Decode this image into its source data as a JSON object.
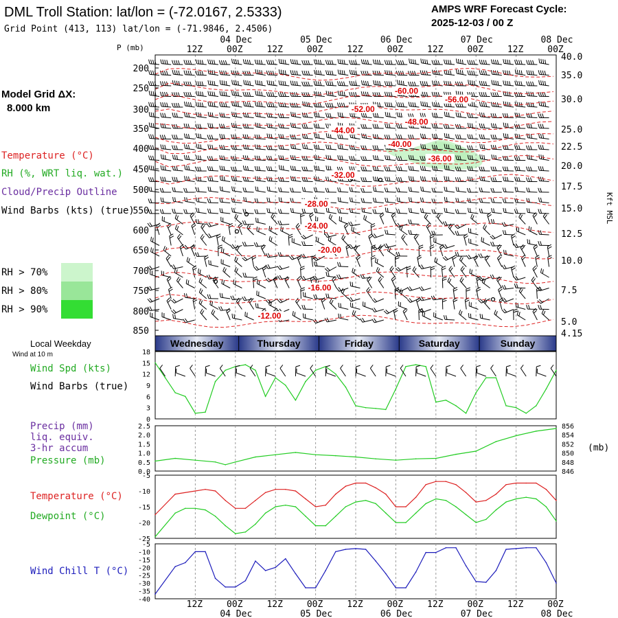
{
  "header": {
    "title": "DML Troll Station:  lat/lon = (-72.0167, 2.5333)",
    "grid_point": "Grid Point (413, 113) lat/lon = (-71.9846, 2.4506)",
    "cycle_label": "AMPS WRF Forecast Cycle:",
    "cycle_value": "2025-12-03 / 00  Z"
  },
  "time_axis": {
    "hour_labels": [
      "12Z",
      "00Z",
      "12Z",
      "00Z",
      "12Z",
      "00Z",
      "12Z",
      "00Z",
      "12Z",
      "00Z"
    ],
    "date_labels": [
      "04 Dec",
      "05 Dec",
      "06 Dec",
      "07 Dec",
      "08 Dec"
    ]
  },
  "left_panel": {
    "model_grid_label": "Model Grid ΔX:",
    "model_grid_value": "8.000 km",
    "legend": [
      {
        "text": "Temperature (°C)",
        "color": "#dd2222"
      },
      {
        "text": "RH (%, WRT liq. wat.)",
        "color": "#22aa22"
      },
      {
        "text": "Cloud/Precip Outline",
        "color": "#6a2ea0"
      },
      {
        "text": "Wind Barbs (kts) (true)",
        "color": "#000000"
      }
    ],
    "rh_legend": [
      {
        "text": "RH > 70%",
        "color": "#ccf5cc"
      },
      {
        "text": "RH > 80%",
        "color": "#99e699"
      },
      {
        "text": "RH > 90%",
        "color": "#33dd33"
      }
    ]
  },
  "chart_data": [
    {
      "type": "heatmap",
      "title": "",
      "ylabel": "P (mb)",
      "y_right_label": "Kft MSL",
      "pressure_ticks": [
        "200",
        "250",
        "300",
        "350",
        "400",
        "450",
        "500",
        "550",
        "600",
        "650",
        "700",
        "750",
        "800",
        "850"
      ],
      "height_ticks": [
        "40.0",
        "35.0",
        "30.0",
        "25.0",
        "22.5",
        "20.0",
        "17.5",
        "15.0",
        "12.5",
        "10.0",
        "7.5",
        "5.0",
        "4.15"
      ],
      "temperature_isotherms": [
        {
          "value": -60,
          "label": "-60.00",
          "pressure": 262,
          "time_h": 75
        },
        {
          "value": -56,
          "label": "-56.00",
          "pressure": 282,
          "time_h": 90
        },
        {
          "value": -52,
          "label": "-52.00",
          "pressure": 305,
          "time_h": 62
        },
        {
          "value": -48,
          "label": "-48.00",
          "pressure": 338,
          "time_h": 78
        },
        {
          "value": -44,
          "label": "-44.00",
          "pressure": 360,
          "time_h": 56
        },
        {
          "value": -40,
          "label": "-40.00",
          "pressure": 395,
          "time_h": 73
        },
        {
          "value": -36,
          "label": "-36.00",
          "pressure": 430,
          "time_h": 85
        },
        {
          "value": -32,
          "label": "-32.00",
          "pressure": 470,
          "time_h": 56
        },
        {
          "value": -28,
          "label": "-28.00",
          "pressure": 540,
          "time_h": 48
        },
        {
          "value": -24,
          "label": "-24.00",
          "pressure": 595,
          "time_h": 48
        },
        {
          "value": -20,
          "label": "-20.00",
          "pressure": 655,
          "time_h": 52
        },
        {
          "value": -16,
          "label": "-16.00",
          "pressure": 748,
          "time_h": 49
        },
        {
          "value": -12,
          "label": "-12.00",
          "pressure": 818,
          "time_h": 34
        }
      ]
    },
    {
      "type": "line",
      "title": "",
      "labels": [
        "Wind Spd (kts)",
        "Wind Barbs (true)"
      ],
      "yticks": [
        "0",
        "3",
        "6",
        "9",
        "12",
        "15",
        "18"
      ],
      "ylim": [
        0,
        18
      ],
      "series": [
        {
          "name": "Wind Spd (kts)",
          "color": "#22cc22",
          "x": [
            0,
            3,
            6,
            9,
            12,
            15,
            18,
            21,
            24,
            27,
            30,
            33,
            36,
            39,
            42,
            45,
            48,
            51,
            54,
            57,
            60,
            63,
            66,
            69,
            72,
            75,
            78,
            81,
            84,
            87,
            90,
            93,
            96,
            99,
            102,
            105,
            108,
            111,
            114,
            117,
            120
          ],
          "values": [
            15,
            11,
            7,
            6,
            1.5,
            1.8,
            10,
            13,
            14,
            14.5,
            13,
            6,
            11,
            9,
            5,
            10,
            13,
            14,
            12,
            8.5,
            3.5,
            3,
            2.8,
            2.5,
            8,
            14,
            14.5,
            14,
            4.5,
            5,
            3.5,
            1.5,
            7,
            11,
            11,
            3.5,
            3,
            1.5,
            3.5,
            8,
            13
          ]
        }
      ]
    },
    {
      "type": "line",
      "title": "",
      "labels": [
        "Precip (mm)",
        "liq. equiv.",
        "3-hr accum",
        "Pressure (mb)"
      ],
      "left_ticks": [
        "0.0",
        "0.5",
        "1.0",
        "1.5",
        "2.0",
        "2.5"
      ],
      "right_ticks": [
        "846",
        "848",
        "850",
        "852",
        "854",
        "856"
      ],
      "right_unit": "(mb)",
      "ylim": [
        846,
        856
      ],
      "series": [
        {
          "name": "Pressure (mb)",
          "color": "#22cc22",
          "x": [
            0,
            6,
            12,
            18,
            21,
            24,
            30,
            36,
            42,
            48,
            54,
            60,
            66,
            72,
            78,
            84,
            90,
            96,
            102,
            108,
            114,
            120
          ],
          "values": [
            848.2,
            848.8,
            848.4,
            848.0,
            847.4,
            848.0,
            849.1,
            849.6,
            850.1,
            849.6,
            849.4,
            849.1,
            848.7,
            848.4,
            848.7,
            848.8,
            849.7,
            850.4,
            852.5,
            853.8,
            854.8,
            855.4
          ]
        }
      ]
    },
    {
      "type": "line",
      "title": "",
      "labels": [
        "Temperature (°C)",
        "Dewpoint (°C)"
      ],
      "yticks": [
        "-5",
        "-10",
        "-15",
        "-20",
        "-25"
      ],
      "ylim": [
        -25,
        -5
      ],
      "series": [
        {
          "name": "Temperature (°C)",
          "color": "#dd2222",
          "x": [
            0,
            6,
            12,
            15,
            18,
            21,
            24,
            27,
            30,
            33,
            36,
            39,
            42,
            45,
            48,
            51,
            54,
            57,
            60,
            63,
            66,
            69,
            72,
            75,
            78,
            81,
            84,
            87,
            90,
            93,
            96,
            99,
            102,
            105,
            108,
            111,
            114,
            117,
            120
          ],
          "values": [
            -17.5,
            -11,
            -10,
            -9.5,
            -10,
            -13,
            -15.5,
            -15.5,
            -13,
            -10.5,
            -9.5,
            -9.5,
            -10,
            -12.5,
            -15,
            -14.5,
            -11,
            -8.5,
            -7.5,
            -7.5,
            -9,
            -11,
            -15,
            -15,
            -12,
            -8,
            -7,
            -7,
            -8,
            -10.5,
            -13.5,
            -13,
            -11,
            -8,
            -7.5,
            -7.5,
            -7.5,
            -9.5,
            -13
          ]
        },
        {
          "name": "Dewpoint (°C)",
          "color": "#22cc22",
          "x": [
            0,
            6,
            9,
            12,
            15,
            18,
            21,
            24,
            27,
            30,
            33,
            36,
            39,
            42,
            45,
            48,
            51,
            54,
            57,
            60,
            63,
            66,
            69,
            72,
            75,
            78,
            81,
            84,
            87,
            90,
            93,
            96,
            99,
            102,
            105,
            108,
            111,
            114,
            117,
            120
          ],
          "values": [
            -24.5,
            -17,
            -15.5,
            -15.5,
            -16,
            -18,
            -21,
            -23.5,
            -23,
            -20.5,
            -17,
            -15,
            -14.5,
            -15,
            -18,
            -21,
            -21,
            -18,
            -15,
            -13.5,
            -13,
            -14,
            -17,
            -20,
            -20,
            -17,
            -14,
            -12.5,
            -13,
            -15,
            -17.5,
            -20,
            -19,
            -16,
            -13.5,
            -12.5,
            -12,
            -12.5,
            -15,
            -19.5
          ]
        }
      ]
    },
    {
      "type": "line",
      "title": "",
      "labels": [
        "Wind Chill T (°C)"
      ],
      "yticks": [
        "-5",
        "-10",
        "-15",
        "-20",
        "-25",
        "-30",
        "-35",
        "-40"
      ],
      "ylim": [
        -40,
        -5
      ],
      "series": [
        {
          "name": "Wind Chill T (°C)",
          "color": "#1c1cbb",
          "x": [
            0,
            6,
            9,
            12,
            15,
            18,
            21,
            24,
            27,
            30,
            33,
            36,
            39,
            42,
            45,
            48,
            51,
            54,
            57,
            60,
            63,
            66,
            69,
            72,
            75,
            78,
            81,
            84,
            87,
            90,
            93,
            96,
            99,
            102,
            105,
            108,
            111,
            114,
            117,
            120
          ],
          "values": [
            -37,
            -19.5,
            -17,
            -10,
            -10,
            -27,
            -32.5,
            -32.5,
            -28.5,
            -16,
            -22,
            -20,
            -14.5,
            -24,
            -33,
            -33,
            -22,
            -10,
            -8.5,
            -8,
            -8.5,
            -16,
            -24,
            -33,
            -33,
            -23,
            -10.5,
            -10.5,
            -7.5,
            -7.5,
            -19,
            -29,
            -29.5,
            -22,
            -8.5,
            -8,
            -7.5,
            -7.5,
            -17,
            -30
          ]
        }
      ]
    }
  ],
  "weekday_bar": {
    "label": "Local Weekday",
    "sublabel": "Wind at 10 m",
    "days": [
      "Wednesday",
      "Thursday",
      "Friday",
      "Saturday",
      "Sunday"
    ]
  }
}
